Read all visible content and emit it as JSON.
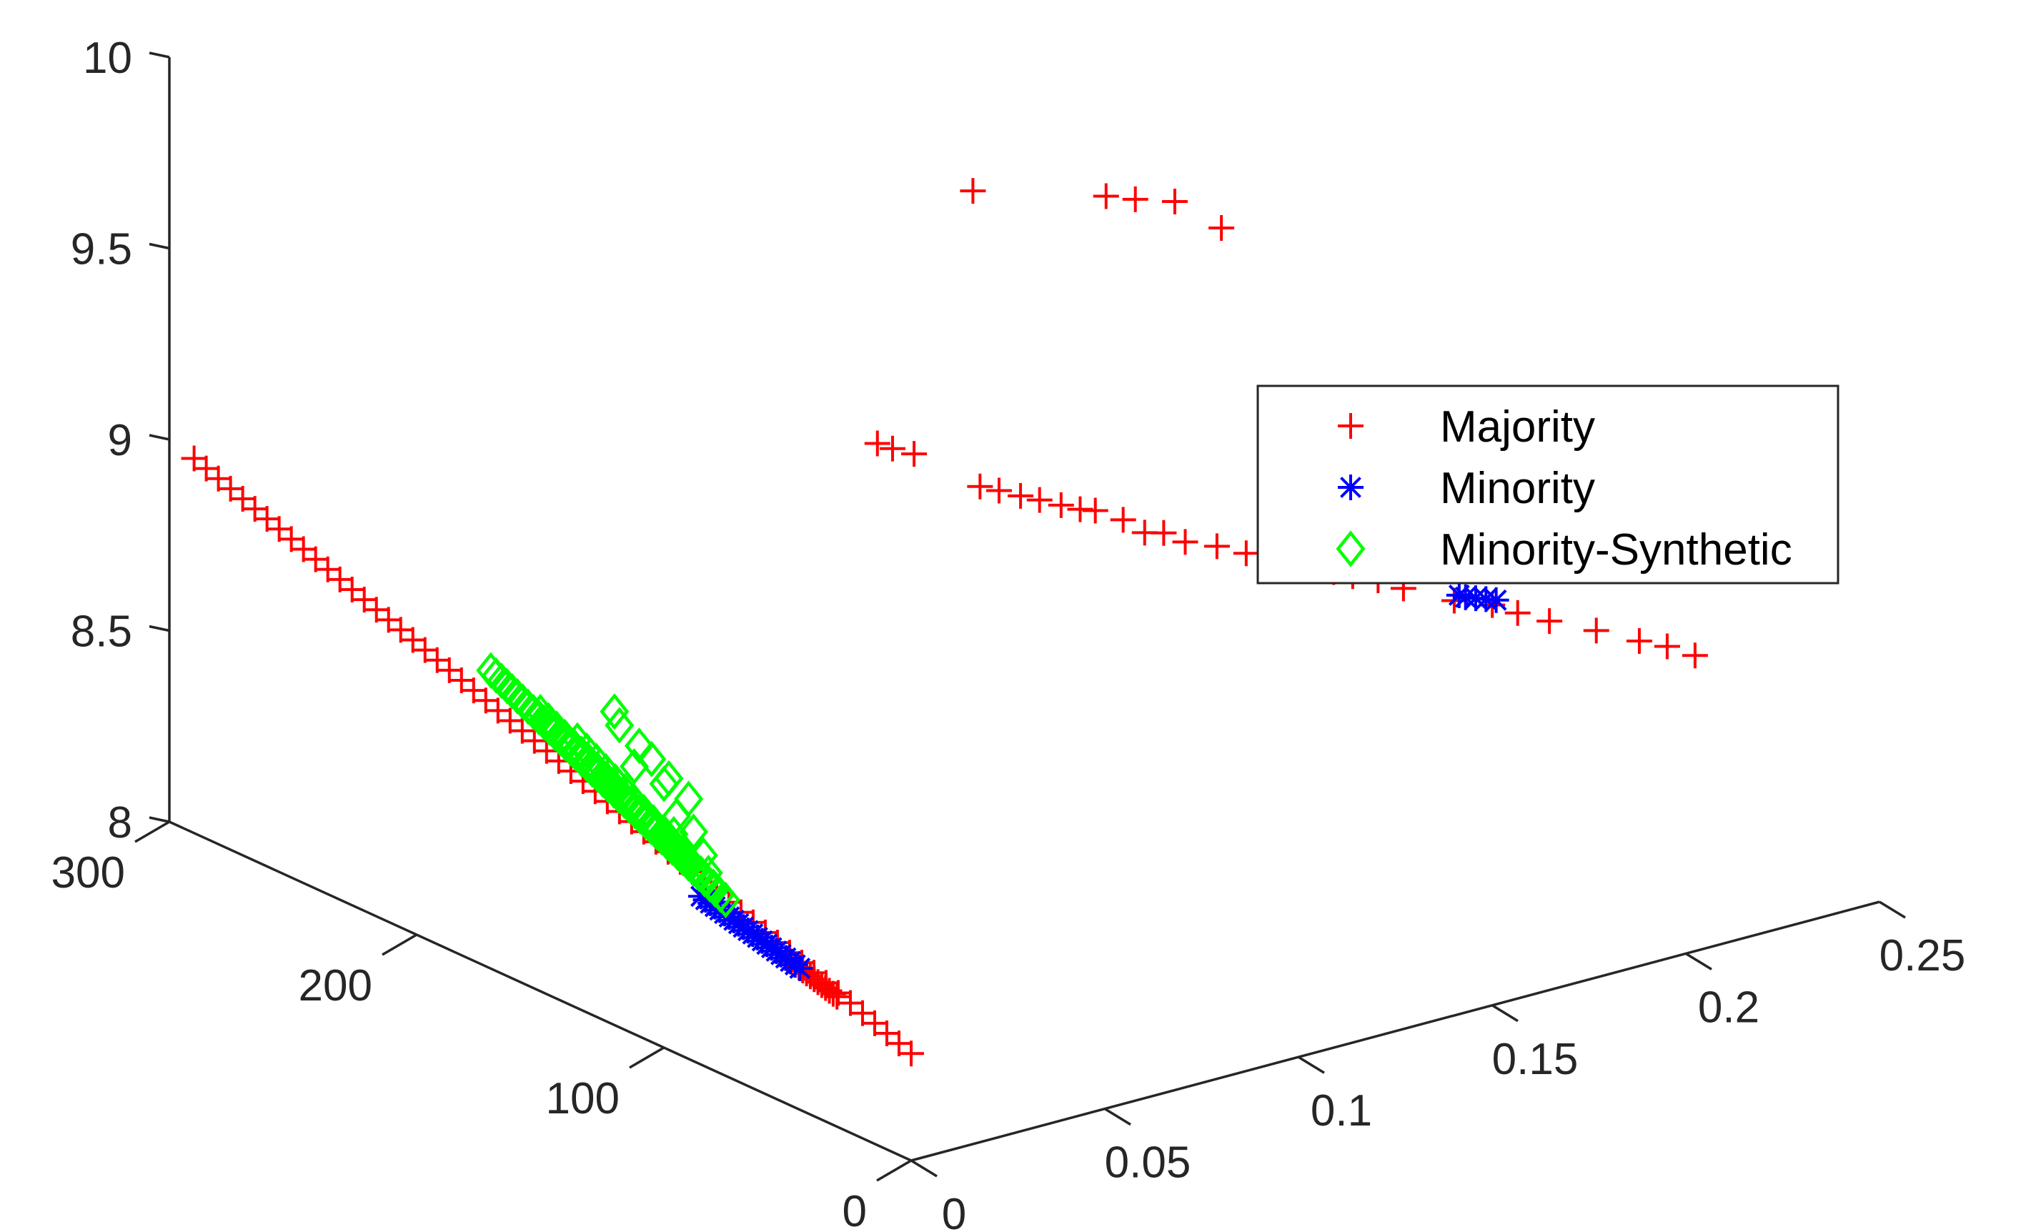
{
  "chart_data": {
    "type": "scatter3d",
    "title": "",
    "xlabel": "",
    "ylabel": "",
    "zlabel": "",
    "axes": {
      "z_left": {
        "range": [
          8,
          10
        ],
        "ticks": [
          {
            "v": 8,
            "label": "8"
          },
          {
            "v": 8.5,
            "label": "8.5"
          },
          {
            "v": 9,
            "label": "9"
          },
          {
            "v": 9.5,
            "label": "9.5"
          },
          {
            "v": 10,
            "label": "10"
          }
        ]
      },
      "y_depth": {
        "range": [
          0,
          300
        ],
        "ticks": [
          {
            "v": 0,
            "label": "0"
          },
          {
            "v": 100,
            "label": "100"
          },
          {
            "v": 200,
            "label": "200"
          },
          {
            "v": 300,
            "label": "300"
          }
        ]
      },
      "x_right": {
        "range": [
          0,
          0.25
        ],
        "ticks": [
          {
            "v": 0,
            "label": "0"
          },
          {
            "v": 0.05,
            "label": "0.05"
          },
          {
            "v": 0.1,
            "label": "0.1"
          },
          {
            "v": 0.15,
            "label": "0.15"
          },
          {
            "v": 0.2,
            "label": "0.2"
          },
          {
            "v": 0.25,
            "label": "0.25"
          }
        ]
      }
    },
    "legend": {
      "position": "upper-right",
      "entries": [
        {
          "name": "Majority",
          "marker": "plus",
          "color": "#ff0000"
        },
        {
          "name": "Minority",
          "marker": "asterisk",
          "color": "#0000ff"
        },
        {
          "name": "Minority-Synthetic",
          "marker": "diamond",
          "color": "#00ff00"
        }
      ]
    },
    "series": [
      {
        "name": "Majority",
        "marker": "plus",
        "color": "#ff0000",
        "segments": [
          {
            "from": [
              0.0,
              0,
              8.28
            ],
            "to": [
              0.0,
              290,
              8.98
            ],
            "count": 60
          },
          {
            "from": [
              0.0,
              30,
              8.34
            ],
            "to": [
              0.0,
              50,
              8.38
            ],
            "count": 14
          }
        ],
        "points": [
          [
            0.103,
            175,
            9.08
          ],
          [
            0.105,
            172,
            9.07
          ],
          [
            0.108,
            168,
            9.06
          ],
          [
            0.118,
            157,
            8.98
          ],
          [
            0.121,
            154,
            8.97
          ],
          [
            0.124,
            150,
            8.96
          ],
          [
            0.127,
            147,
            8.95
          ],
          [
            0.13,
            143,
            8.94
          ],
          [
            0.133,
            140,
            8.93
          ],
          [
            0.135,
            137,
            8.93
          ],
          [
            0.139,
            132,
            8.91
          ],
          [
            0.142,
            128,
            8.88
          ],
          [
            0.145,
            125,
            8.88
          ],
          [
            0.148,
            121,
            8.86
          ],
          [
            0.153,
            116,
            8.85
          ],
          [
            0.158,
            112,
            8.83
          ],
          [
            0.162,
            108,
            8.82
          ],
          [
            0.165,
            104,
            8.81
          ],
          [
            0.168,
            101,
            8.8
          ],
          [
            0.171,
            97,
            8.79
          ],
          [
            0.174,
            94,
            8.78
          ],
          [
            0.178,
            90,
            8.77
          ],
          [
            0.182,
            86,
            8.75
          ],
          [
            0.19,
            78,
            8.72
          ],
          [
            0.196,
            72,
            8.71
          ],
          [
            0.2,
            68,
            8.69
          ],
          [
            0.205,
            63,
            8.67
          ],
          [
            0.212,
            55,
            8.65
          ],
          [
            0.218,
            47,
            8.63
          ],
          [
            0.222,
            42,
            8.62
          ],
          [
            0.226,
            37,
            8.6
          ],
          [
            0.15,
            210,
            9.51
          ],
          [
            0.178,
            200,
            9.45
          ],
          [
            0.183,
            196,
            9.44
          ],
          [
            0.19,
            191,
            9.43
          ],
          [
            0.195,
            180,
            9.38
          ]
        ]
      },
      {
        "name": "Minority",
        "marker": "asterisk",
        "color": "#0000ff",
        "segments": [
          {
            "from": [
              0.0,
              45,
              8.37
            ],
            "to": [
              0.0,
              85,
              8.44
            ],
            "count": 22
          }
        ],
        "points": [
          [
            0.19,
            76,
            8.74
          ],
          [
            0.191,
            75,
            8.735
          ],
          [
            0.193,
            74,
            8.73
          ],
          [
            0.195,
            73,
            8.725
          ],
          [
            0.197,
            72,
            8.72
          ]
        ]
      },
      {
        "name": "Minority-Synthetic",
        "marker": "diamond",
        "color": "#00ff00",
        "segments": [
          {
            "from": [
              0.0,
              170,
              8.78
            ],
            "to": [
              0.0,
              75,
              8.46
            ],
            "count": 45
          },
          {
            "from": [
              0.0,
              150,
              8.73
            ],
            "to": [
              0.0,
              80,
              8.48
            ],
            "count": 22
          },
          {
            "from": [
              0.0,
              135,
              8.7
            ],
            "to": [
              0.0,
              85,
              8.5
            ],
            "count": 14
          }
        ],
        "points": [
          [
            0.0,
            120,
            8.82
          ],
          [
            0.0,
            118,
            8.79
          ],
          [
            0.0,
            105,
            8.74
          ],
          [
            0.0,
            98,
            8.71
          ],
          [
            0.0,
            95,
            8.62
          ],
          [
            0.0,
            88,
            8.6
          ],
          [
            0.0,
            84,
            8.55
          ],
          [
            0.0,
            90,
            8.68
          ],
          [
            0.0,
            100,
            8.69
          ],
          [
            0.0,
            110,
            8.76
          ],
          [
            0.0,
            112,
            8.7
          ],
          [
            0.0,
            96,
            8.57
          ],
          [
            0.0,
            82,
            8.51
          ]
        ]
      }
    ]
  }
}
